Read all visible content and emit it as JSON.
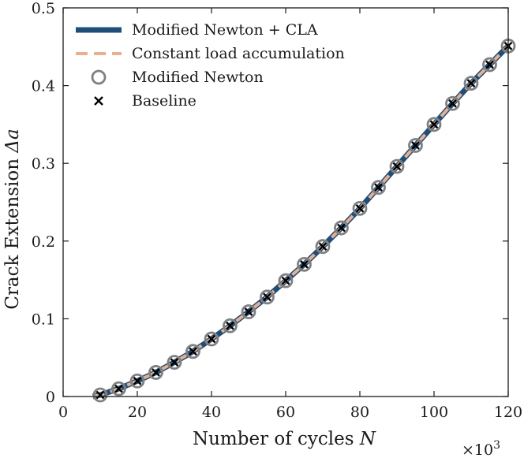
{
  "chart_data": {
    "type": "line",
    "xlabel_text": "Number of cycles",
    "xlabel_symbol": "N",
    "ylabel_text": "Crack Extension",
    "ylabel_symbol": "Δa",
    "x_multiplier_base": "×10",
    "x_multiplier_exp": "3",
    "xlim": [
      0,
      120
    ],
    "ylim": [
      0,
      0.5
    ],
    "xticks": [
      0,
      20,
      40,
      60,
      80,
      100,
      120
    ],
    "xtick_labels": [
      "0",
      "20",
      "40",
      "60",
      "80",
      "100",
      "120"
    ],
    "yticks": [
      0,
      0.1,
      0.2,
      0.3,
      0.4,
      0.5
    ],
    "ytick_labels": [
      "0",
      "0.1",
      "0.2",
      "0.3",
      "0.4",
      "0.5"
    ],
    "x": [
      10,
      15,
      20,
      25,
      30,
      35,
      40,
      45,
      50,
      55,
      60,
      65,
      70,
      75,
      80,
      85,
      90,
      95,
      100,
      105,
      110,
      115,
      120
    ],
    "series": [
      {
        "name": "Modified Newton + CLA",
        "style": "thick-line",
        "color": "#1f4e79",
        "x": [
          8,
          10,
          15,
          20,
          25,
          30,
          35,
          40,
          45,
          50,
          55,
          60,
          65,
          70,
          75,
          80,
          85,
          90,
          95,
          100,
          105,
          110,
          115,
          120
        ],
        "values": [
          0.0,
          0.002,
          0.01,
          0.02,
          0.031,
          0.044,
          0.058,
          0.074,
          0.091,
          0.109,
          0.128,
          0.149,
          0.17,
          0.193,
          0.217,
          0.242,
          0.269,
          0.296,
          0.323,
          0.35,
          0.377,
          0.403,
          0.427,
          0.451
        ]
      },
      {
        "name": "Constant load accumulation",
        "style": "dashed-line",
        "color": "#e8b090",
        "x": [
          8,
          10,
          15,
          20,
          25,
          30,
          35,
          40,
          45,
          50,
          55,
          60,
          65,
          70,
          75,
          80,
          85,
          90,
          95,
          100,
          105,
          110,
          115,
          120
        ],
        "values": [
          0.0,
          0.002,
          0.01,
          0.02,
          0.031,
          0.044,
          0.058,
          0.074,
          0.091,
          0.109,
          0.128,
          0.149,
          0.17,
          0.193,
          0.217,
          0.242,
          0.269,
          0.296,
          0.323,
          0.35,
          0.377,
          0.403,
          0.427,
          0.451
        ]
      },
      {
        "name": "Modified Newton",
        "style": "open-circle",
        "color": "#808080",
        "values": [
          0.002,
          0.01,
          0.02,
          0.031,
          0.044,
          0.058,
          0.074,
          0.091,
          0.109,
          0.128,
          0.149,
          0.17,
          0.193,
          0.217,
          0.242,
          0.269,
          0.296,
          0.323,
          0.35,
          0.377,
          0.403,
          0.427,
          0.451
        ]
      },
      {
        "name": "Baseline",
        "style": "x-marker",
        "color": "#000000",
        "values": [
          0.002,
          0.01,
          0.02,
          0.031,
          0.044,
          0.058,
          0.074,
          0.091,
          0.109,
          0.128,
          0.149,
          0.17,
          0.193,
          0.217,
          0.242,
          0.269,
          0.296,
          0.323,
          0.35,
          0.377,
          0.403,
          0.427,
          0.451
        ]
      }
    ],
    "legend_position": "top-left",
    "grid": false
  }
}
